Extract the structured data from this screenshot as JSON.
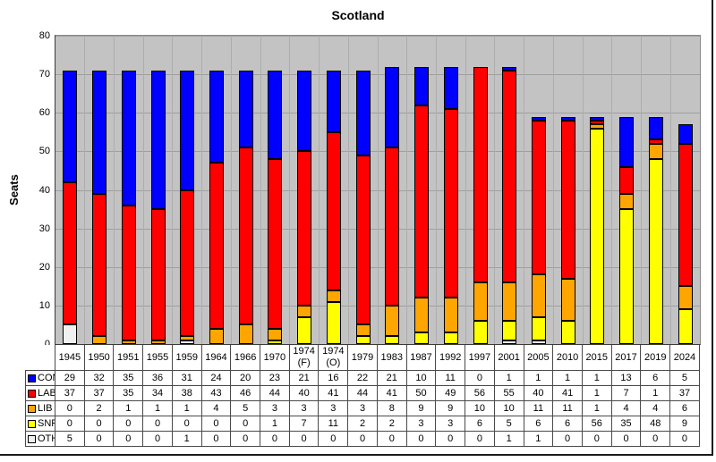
{
  "chart_data": {
    "type": "bar",
    "stacked": true,
    "title": "Scotland",
    "ylabel": "Seats",
    "xlabel": "",
    "ylim": [
      0,
      80
    ],
    "ytick_step": 10,
    "grid": true,
    "legend_position": "table-left-column",
    "plot_bg_color": "#c3c3c3",
    "gridline_color": "#9f9f9f",
    "categories": [
      "1945",
      "1950",
      "1951",
      "1955",
      "1959",
      "1964",
      "1966",
      "1970",
      "1974 (F)",
      "1974 (O)",
      "1979",
      "1983",
      "1987",
      "1992",
      "1997",
      "2001",
      "2005",
      "2010",
      "2015",
      "2017",
      "2019",
      "2024"
    ],
    "series": [
      {
        "name": "CON",
        "color": "#0000ff",
        "values": [
          29,
          32,
          35,
          36,
          31,
          24,
          20,
          23,
          21,
          16,
          22,
          21,
          10,
          11,
          0,
          1,
          1,
          1,
          1,
          13,
          6,
          5
        ]
      },
      {
        "name": "LAB",
        "color": "#ff0000",
        "values": [
          37,
          37,
          35,
          34,
          38,
          43,
          46,
          44,
          40,
          41,
          44,
          41,
          50,
          49,
          56,
          55,
          40,
          41,
          1,
          7,
          1,
          37
        ]
      },
      {
        "name": "LIB",
        "color": "#ffa500",
        "values": [
          0,
          2,
          1,
          1,
          1,
          4,
          5,
          3,
          3,
          3,
          3,
          8,
          9,
          9,
          10,
          10,
          11,
          11,
          1,
          4,
          4,
          6
        ]
      },
      {
        "name": "SNP",
        "color": "#ffff00",
        "values": [
          0,
          0,
          0,
          0,
          0,
          0,
          0,
          1,
          7,
          11,
          2,
          2,
          3,
          3,
          6,
          5,
          6,
          6,
          56,
          35,
          48,
          9
        ]
      },
      {
        "name": "OTH",
        "color": "#f0f0f0",
        "values": [
          5,
          0,
          0,
          0,
          1,
          0,
          0,
          0,
          0,
          0,
          0,
          0,
          0,
          0,
          0,
          1,
          1,
          0,
          0,
          0,
          0,
          0
        ]
      }
    ],
    "stacking_order_bottom_to_top": [
      "OTH",
      "SNP",
      "LIB",
      "LAB",
      "CON"
    ]
  }
}
